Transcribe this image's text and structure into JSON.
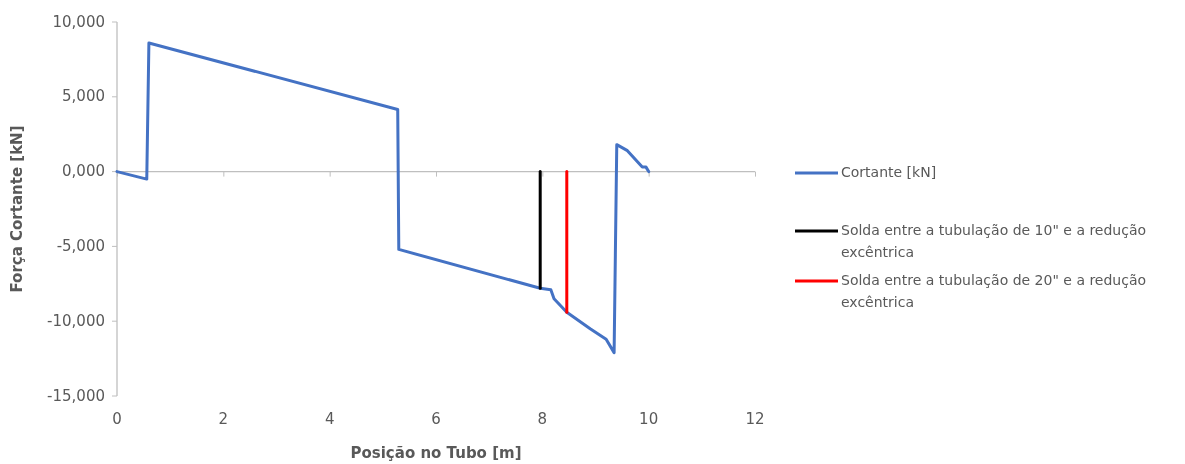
{
  "chart_data": {
    "type": "line",
    "xlabel": "Posição no Tubo [m]",
    "ylabel": "Força Cortante [kN]",
    "xlim": [
      0,
      12
    ],
    "xticks": [
      0,
      2,
      4,
      6,
      8,
      10,
      12
    ],
    "ylim": [
      -15000,
      10000
    ],
    "yticks": [
      {
        "value": -15000,
        "label": "-15,000"
      },
      {
        "value": -10000,
        "label": "-10,000"
      },
      {
        "value": -5000,
        "label": "-5,000"
      },
      {
        "value": 0,
        "label": "0,000"
      },
      {
        "value": 5000,
        "label": "5,000"
      },
      {
        "value": 10000,
        "label": "10,000"
      }
    ],
    "grid": false,
    "ref_lines": [
      {
        "axis": "y",
        "value": 0,
        "color": "#bfbfbf"
      }
    ],
    "legend": "right",
    "line_style": "solid",
    "marker": "none",
    "series": [
      {
        "name": "Cortante [kN]",
        "color": "#4472c4",
        "x": [
          0,
          0.56,
          0.6,
          5.28,
          5.3,
          7.96,
          8.16,
          8.22,
          8.46,
          8.9,
          9.2,
          9.35,
          9.4,
          9.6,
          9.88,
          9.95,
          10.0
        ],
        "values": [
          0,
          -500,
          8600,
          4150,
          -5200,
          -7800,
          -7900,
          -8500,
          -9400,
          -10500,
          -11200,
          -12100,
          1800,
          1400,
          300,
          300,
          0
        ]
      },
      {
        "name": "Solda entre a tubulação de 10\" e a redução excêntrica",
        "color": "#000000",
        "x": [
          7.96,
          7.96
        ],
        "values": [
          0,
          -7800
        ]
      },
      {
        "name": "Solda entre a tubulação de 20\" e a redução excêntrica",
        "color": "#ff0000",
        "x": [
          8.46,
          8.46
        ],
        "values": [
          0,
          -9400
        ]
      }
    ]
  }
}
